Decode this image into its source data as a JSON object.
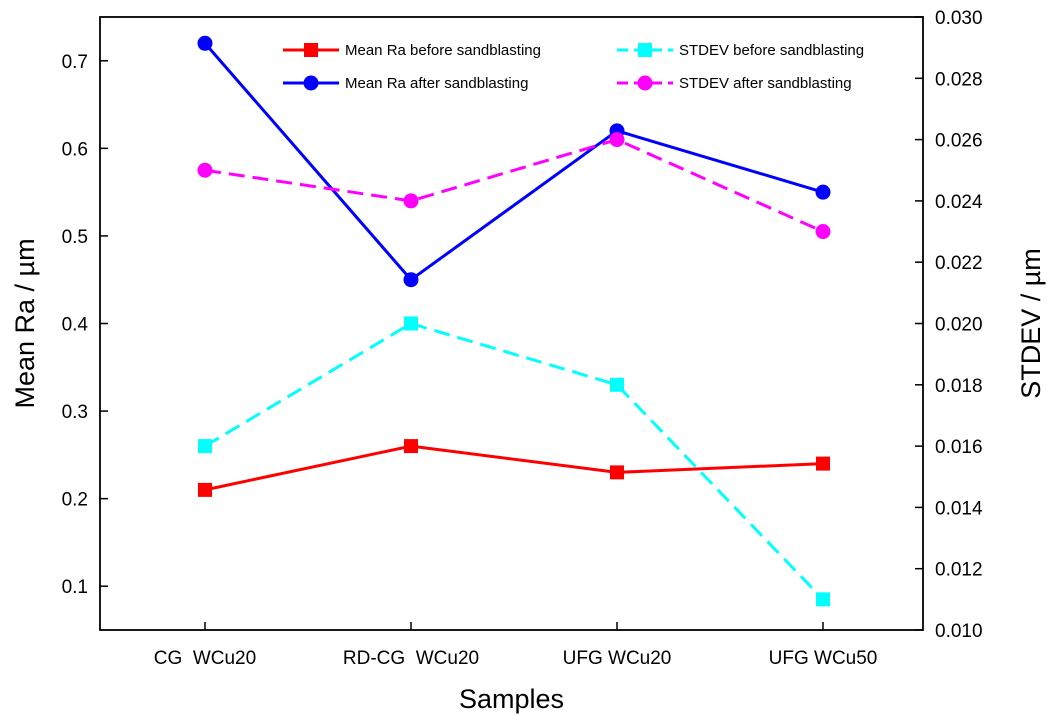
{
  "chart_data": {
    "type": "line",
    "title": "",
    "xlabel": "Samples",
    "ylabel": "Mean Ra / µm",
    "y2label": "STDEV / µm",
    "categories": [
      "CG  WCu20",
      "RD-CG  WCu20",
      "UFG WCu20",
      "UFG WCu50"
    ],
    "ylim": [
      0.05,
      0.75
    ],
    "yticks": [
      "0.1",
      "0.2",
      "0.3",
      "0.4",
      "0.5",
      "0.6",
      "0.7"
    ],
    "y2lim": [
      0.01,
      0.03
    ],
    "y2ticks": [
      "0.010",
      "0.012",
      "0.014",
      "0.016",
      "0.018",
      "0.020",
      "0.022",
      "0.024",
      "0.026",
      "0.028",
      "0.030"
    ],
    "legend_position": "top",
    "series": [
      {
        "name": "Mean Ra before sandblasting",
        "axis": "left",
        "values": [
          0.21,
          0.26,
          0.23,
          0.24
        ],
        "color": "#ff0000",
        "marker": "square",
        "dash": "solid"
      },
      {
        "name": "Mean Ra after sandblasting",
        "axis": "left",
        "values": [
          0.72,
          0.45,
          0.62,
          0.55
        ],
        "color": "#0000ff",
        "marker": "circle",
        "dash": "solid"
      },
      {
        "name": "STDEV before sandblasting",
        "axis": "right",
        "values": [
          0.016,
          0.02,
          0.018,
          0.011
        ],
        "color": "#00ffff",
        "marker": "square",
        "dash": "dashed"
      },
      {
        "name": "STDEV after sandblasting",
        "axis": "right",
        "values": [
          0.025,
          0.024,
          0.026,
          0.023
        ],
        "color": "#ff00ff",
        "marker": "circle",
        "dash": "dashed"
      }
    ]
  }
}
